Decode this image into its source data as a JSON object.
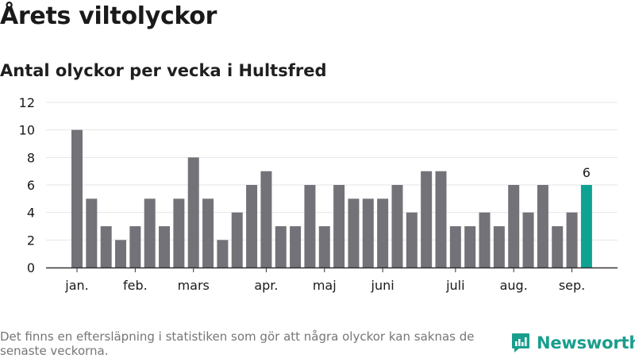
{
  "title": "Årets viltolyckor",
  "subtitle": "Antal olyckor per vecka i Hultsfred",
  "footnote": "Det finns en eftersläpning i statistiken som gör att några olyckor kan saknas de senaste veckorna.",
  "brand": {
    "name": "Newsworthy",
    "color": "#1a9e8c"
  },
  "colors": {
    "bar": "#737278",
    "highlight": "#0fa293",
    "grid": "#e6e6e6",
    "axis": "#333333"
  },
  "chart_data": {
    "type": "bar",
    "x": [
      1,
      2,
      3,
      4,
      5,
      6,
      7,
      8,
      9,
      10,
      11,
      12,
      13,
      14,
      15,
      16,
      17,
      18,
      19,
      20,
      21,
      22,
      23,
      24,
      25,
      26,
      27,
      28,
      29,
      30,
      31,
      32,
      33,
      34,
      35,
      36
    ],
    "values": [
      10,
      5,
      3,
      2,
      3,
      5,
      3,
      5,
      8,
      5,
      2,
      4,
      6,
      7,
      3,
      3,
      6,
      3,
      6,
      5,
      5,
      5,
      6,
      4,
      7,
      7,
      3,
      3,
      4,
      3,
      6,
      4,
      6,
      3,
      4,
      6
    ],
    "highlight_index": 35,
    "data_labels": [
      {
        "index": 35,
        "text": "6"
      }
    ],
    "ylim": [
      0,
      12
    ],
    "yticks": [
      0,
      2,
      4,
      6,
      8,
      10,
      12
    ],
    "xtick_labels": [
      {
        "label": "jan.",
        "x": 1
      },
      {
        "label": "feb.",
        "x": 5
      },
      {
        "label": "mars",
        "x": 9
      },
      {
        "label": "apr.",
        "x": 14
      },
      {
        "label": "maj",
        "x": 18
      },
      {
        "label": "juni",
        "x": 22
      },
      {
        "label": "juli",
        "x": 27
      },
      {
        "label": "aug.",
        "x": 31
      },
      {
        "label": "sep.",
        "x": 35
      }
    ],
    "grid": true
  }
}
